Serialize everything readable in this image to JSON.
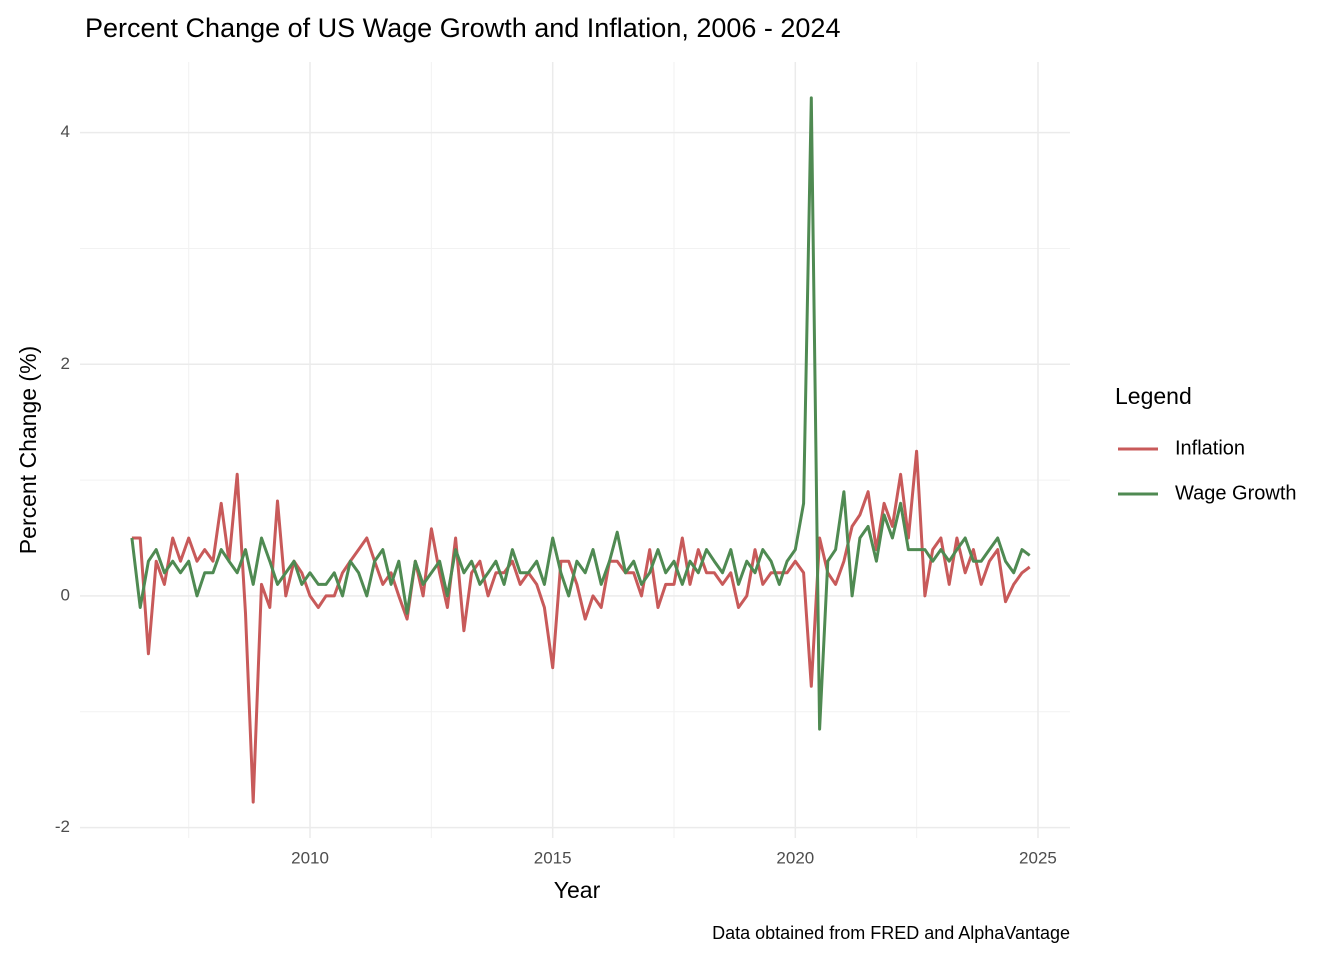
{
  "chart_data": {
    "type": "line",
    "title": "Percent Change of US Wage Growth and Inflation, 2006 - 2024",
    "x_label": "Year",
    "y_label": "Percent Change (%)",
    "caption": "Data obtained from FRED and AlphaVantage",
    "legend_title": "Legend",
    "legend_position": "right",
    "grid": true,
    "xlim": [
      2005.26,
      2025.66
    ],
    "xticks": [
      2010,
      2015,
      2020,
      2025
    ],
    "xminor": [
      2007.5,
      2012.5,
      2017.5,
      2022.5
    ],
    "ylim": [
      -2.09,
      4.61
    ],
    "yticks": [
      -2,
      0,
      2,
      4
    ],
    "yminor": [
      -1,
      1,
      3
    ],
    "x": [
      2006.33,
      2006.5,
      2006.67,
      2006.83,
      2007,
      2007.17,
      2007.33,
      2007.5,
      2007.67,
      2007.83,
      2008,
      2008.17,
      2008.33,
      2008.5,
      2008.67,
      2008.83,
      2009,
      2009.17,
      2009.33,
      2009.5,
      2009.67,
      2009.83,
      2010,
      2010.17,
      2010.33,
      2010.5,
      2010.67,
      2010.83,
      2011,
      2011.17,
      2011.33,
      2011.5,
      2011.67,
      2011.83,
      2012,
      2012.17,
      2012.33,
      2012.5,
      2012.67,
      2012.83,
      2013,
      2013.17,
      2013.33,
      2013.5,
      2013.67,
      2013.83,
      2014,
      2014.17,
      2014.33,
      2014.5,
      2014.67,
      2014.83,
      2015,
      2015.17,
      2015.33,
      2015.5,
      2015.67,
      2015.83,
      2016,
      2016.17,
      2016.33,
      2016.5,
      2016.67,
      2016.83,
      2017,
      2017.17,
      2017.33,
      2017.5,
      2017.67,
      2017.83,
      2018,
      2018.17,
      2018.33,
      2018.5,
      2018.67,
      2018.83,
      2019,
      2019.17,
      2019.33,
      2019.5,
      2019.67,
      2019.83,
      2020,
      2020.17,
      2020.33,
      2020.5,
      2020.67,
      2020.83,
      2021,
      2021.17,
      2021.33,
      2021.5,
      2021.67,
      2021.83,
      2022,
      2022.17,
      2022.33,
      2022.5,
      2022.67,
      2022.83,
      2023,
      2023.17,
      2023.33,
      2023.5,
      2023.67,
      2023.83,
      2024,
      2024.17,
      2024.33,
      2024.5,
      2024.67,
      2024.83
    ],
    "series": [
      {
        "name": "Inflation",
        "color": "#c85a5a",
        "values": [
          0.5,
          0.5,
          -0.5,
          0.3,
          0.1,
          0.5,
          0.3,
          0.5,
          0.3,
          0.4,
          0.3,
          0.8,
          0.3,
          1.05,
          -0.15,
          -1.78,
          0.1,
          -0.1,
          0.82,
          0.0,
          0.3,
          0.2,
          0.0,
          -0.1,
          0.0,
          0.0,
          0.2,
          0.3,
          0.4,
          0.5,
          0.3,
          0.1,
          0.2,
          0.0,
          -0.2,
          0.3,
          0.0,
          0.58,
          0.2,
          -0.1,
          0.5,
          -0.3,
          0.2,
          0.3,
          0.0,
          0.2,
          0.2,
          0.3,
          0.1,
          0.2,
          0.1,
          -0.1,
          -0.62,
          0.3,
          0.3,
          0.1,
          -0.2,
          0.0,
          -0.1,
          0.3,
          0.3,
          0.2,
          0.2,
          0.0,
          0.4,
          -0.1,
          0.1,
          0.1,
          0.5,
          0.1,
          0.4,
          0.2,
          0.2,
          0.1,
          0.2,
          -0.1,
          0.0,
          0.4,
          0.1,
          0.2,
          0.2,
          0.2,
          0.3,
          0.2,
          -0.78,
          0.5,
          0.2,
          0.1,
          0.3,
          0.6,
          0.7,
          0.9,
          0.4,
          0.8,
          0.6,
          1.05,
          0.5,
          1.25,
          0.0,
          0.4,
          0.5,
          0.1,
          0.5,
          0.2,
          0.4,
          0.1,
          0.3,
          0.4,
          -0.05,
          0.1,
          0.2,
          0.25
        ]
      },
      {
        "name": "Wage Growth",
        "color": "#4f8a52",
        "values": [
          0.5,
          -0.1,
          0.3,
          0.4,
          0.2,
          0.3,
          0.2,
          0.3,
          0.0,
          0.2,
          0.2,
          0.4,
          0.3,
          0.2,
          0.4,
          0.1,
          0.5,
          0.3,
          0.1,
          0.2,
          0.3,
          0.1,
          0.2,
          0.1,
          0.1,
          0.2,
          0.0,
          0.3,
          0.2,
          0.0,
          0.3,
          0.4,
          0.1,
          0.3,
          -0.15,
          0.3,
          0.1,
          0.2,
          0.3,
          0.0,
          0.4,
          0.2,
          0.3,
          0.1,
          0.2,
          0.3,
          0.1,
          0.4,
          0.2,
          0.2,
          0.3,
          0.1,
          0.5,
          0.2,
          0.0,
          0.3,
          0.2,
          0.4,
          0.1,
          0.3,
          0.55,
          0.2,
          0.3,
          0.1,
          0.2,
          0.4,
          0.2,
          0.3,
          0.1,
          0.3,
          0.2,
          0.4,
          0.3,
          0.2,
          0.4,
          0.1,
          0.3,
          0.2,
          0.4,
          0.3,
          0.1,
          0.3,
          0.4,
          0.8,
          4.3,
          -1.15,
          0.3,
          0.4,
          0.9,
          0.0,
          0.5,
          0.6,
          0.3,
          0.7,
          0.5,
          0.8,
          0.4,
          0.4,
          0.4,
          0.3,
          0.4,
          0.3,
          0.4,
          0.5,
          0.3,
          0.3,
          0.4,
          0.5,
          0.3,
          0.2,
          0.4,
          0.35
        ]
      }
    ]
  }
}
